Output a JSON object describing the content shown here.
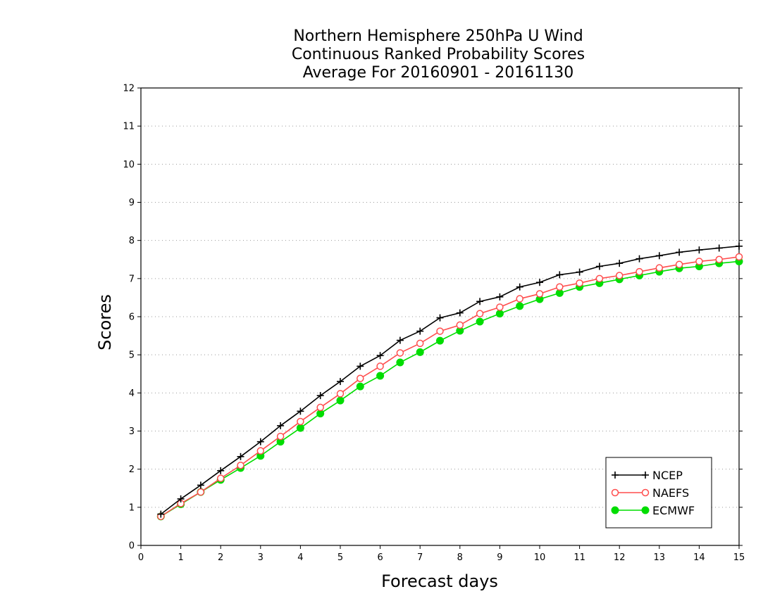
{
  "chart_data": {
    "type": "line",
    "title_lines": [
      "Northern Hemisphere 250hPa U Wind",
      "Continuous Ranked Probability Scores",
      "Average For 20160901 - 20161130"
    ],
    "xlabel": "Forecast days",
    "ylabel": "Scores",
    "xlim": [
      0,
      15
    ],
    "ylim": [
      0,
      12
    ],
    "x_ticks": [
      "0",
      "1",
      "2",
      "3",
      "4",
      "5",
      "6",
      "7",
      "8",
      "9",
      "10",
      "11",
      "12",
      "13",
      "14",
      "15"
    ],
    "y_ticks": [
      "0",
      "1",
      "2",
      "3",
      "4",
      "5",
      "6",
      "7",
      "8",
      "9",
      "10",
      "11",
      "12"
    ],
    "grid": "horizontal dotted",
    "legend_position": "bottom-right",
    "x": [
      0.5,
      1,
      1.5,
      2,
      2.5,
      3,
      3.5,
      4,
      4.5,
      5,
      5.5,
      6,
      6.5,
      7,
      7.5,
      8,
      8.5,
      9,
      9.5,
      10,
      10.5,
      11,
      11.5,
      12,
      12.5,
      13,
      13.5,
      14,
      14.5,
      15
    ],
    "series": [
      {
        "name": "NCEP",
        "color": "#000000",
        "marker": "plus",
        "values": [
          0.82,
          1.22,
          1.58,
          1.96,
          2.33,
          2.72,
          3.14,
          3.52,
          3.93,
          4.3,
          4.7,
          4.98,
          5.38,
          5.62,
          5.97,
          6.1,
          6.4,
          6.52,
          6.78,
          6.9,
          7.1,
          7.17,
          7.32,
          7.4,
          7.52,
          7.6,
          7.69,
          7.75,
          7.8,
          7.85
        ]
      },
      {
        "name": "NAEFS",
        "color": "#ff4d4d",
        "marker": "open-circle",
        "values": [
          0.76,
          1.1,
          1.4,
          1.76,
          2.1,
          2.48,
          2.86,
          3.25,
          3.62,
          3.98,
          4.38,
          4.7,
          5.05,
          5.3,
          5.62,
          5.78,
          6.08,
          6.25,
          6.47,
          6.6,
          6.78,
          6.88,
          7.0,
          7.08,
          7.18,
          7.28,
          7.37,
          7.45,
          7.5,
          7.57
        ]
      },
      {
        "name": "ECMWF",
        "color": "#00dd00",
        "marker": "filled-circle",
        "values": [
          0.76,
          1.08,
          1.4,
          1.72,
          2.03,
          2.35,
          2.72,
          3.08,
          3.46,
          3.8,
          4.17,
          4.45,
          4.8,
          5.07,
          5.37,
          5.63,
          5.87,
          6.08,
          6.28,
          6.46,
          6.62,
          6.78,
          6.88,
          6.98,
          7.08,
          7.18,
          7.27,
          7.32,
          7.4,
          7.45
        ]
      }
    ]
  }
}
